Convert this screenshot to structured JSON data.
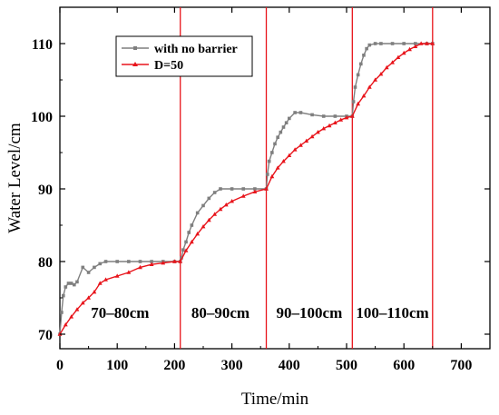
{
  "chart_data": {
    "type": "line",
    "title": "",
    "xlabel": "Time/min",
    "ylabel": "Water Level/cm",
    "xlim": [
      0,
      750
    ],
    "ylim": [
      68,
      115
    ],
    "xticks": [
      0,
      100,
      200,
      300,
      400,
      500,
      600,
      700
    ],
    "yticks": [
      70,
      80,
      90,
      100,
      110
    ],
    "grid": false,
    "legend_position": "top-center",
    "colors": {
      "with_no_barrier": "#7f7f7f",
      "d50": "#e8141b",
      "dividers": "#e8141b"
    },
    "dividers_x": [
      210,
      360,
      510,
      650
    ],
    "phase_labels": [
      {
        "text": "70–80cm",
        "x": 105,
        "y": 73
      },
      {
        "text": "80–90cm",
        "x": 280,
        "y": 73
      },
      {
        "text": "90–100cm",
        "x": 435,
        "y": 73
      },
      {
        "text": "100–110cm",
        "x": 580,
        "y": 73
      }
    ],
    "series": [
      {
        "name": "with no barrier",
        "marker": "square",
        "x": [
          0,
          3,
          6,
          10,
          15,
          20,
          25,
          30,
          40,
          50,
          60,
          70,
          80,
          100,
          120,
          140,
          160,
          180,
          200,
          210,
          212,
          215,
          220,
          225,
          230,
          240,
          250,
          260,
          270,
          280,
          300,
          320,
          340,
          360,
          362,
          365,
          370,
          375,
          380,
          385,
          390,
          395,
          400,
          410,
          420,
          440,
          460,
          480,
          500,
          510,
          512,
          515,
          520,
          525,
          530,
          535,
          540,
          550,
          560,
          580,
          600,
          620,
          640,
          650
        ],
        "y": [
          70,
          73,
          75.3,
          76.5,
          77,
          77,
          76.8,
          77.2,
          79.2,
          78.5,
          79.2,
          79.7,
          80,
          80,
          80,
          80,
          80,
          80,
          80,
          80,
          80.5,
          81.6,
          82.7,
          84,
          85,
          86.7,
          87.7,
          88.7,
          89.5,
          90,
          90,
          90,
          90,
          90,
          92,
          93.8,
          95,
          96.2,
          97.1,
          97.8,
          98.5,
          99.1,
          99.7,
          100.5,
          100.5,
          100.2,
          100,
          100,
          100,
          100,
          102,
          104,
          105.7,
          107.2,
          108.4,
          109.3,
          109.8,
          110,
          110,
          110,
          110,
          110,
          110,
          110
        ]
      },
      {
        "name": "D=50",
        "marker": "triangle",
        "x": [
          0,
          10,
          20,
          30,
          40,
          50,
          60,
          70,
          80,
          100,
          120,
          140,
          160,
          180,
          200,
          210,
          220,
          230,
          240,
          250,
          260,
          270,
          280,
          290,
          300,
          320,
          340,
          360,
          370,
          380,
          390,
          400,
          410,
          420,
          430,
          440,
          450,
          460,
          470,
          480,
          490,
          500,
          510,
          520,
          530,
          540,
          550,
          560,
          570,
          580,
          590,
          600,
          610,
          620,
          630,
          640,
          650
        ],
        "y": [
          70,
          71.3,
          72.4,
          73.4,
          74.3,
          75,
          75.8,
          77,
          77.5,
          78,
          78.5,
          79.2,
          79.6,
          79.8,
          80,
          80,
          81.5,
          82.7,
          83.8,
          84.8,
          85.7,
          86.5,
          87.2,
          87.8,
          88.3,
          89,
          89.6,
          90,
          91.7,
          92.9,
          93.8,
          94.6,
          95.4,
          96,
          96.6,
          97.2,
          97.8,
          98.3,
          98.7,
          99.1,
          99.5,
          99.8,
          100,
          101.7,
          102.8,
          104,
          105,
          105.8,
          106.7,
          107.4,
          108.1,
          108.7,
          109.2,
          109.6,
          110,
          110,
          110
        ]
      }
    ]
  }
}
